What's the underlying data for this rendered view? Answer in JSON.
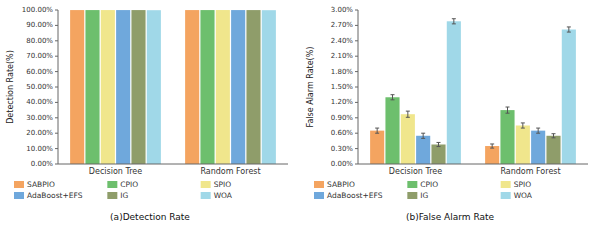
{
  "chart_data": [
    {
      "type": "bar",
      "title": "(a)Detection Rate",
      "y_label": "Detection Rate(%)",
      "categories": [
        "Decision Tree",
        "Random Forest"
      ],
      "series": [
        {
          "name": "SABPIO",
          "color": "#F4A460",
          "values": [
            99.95,
            99.95
          ]
        },
        {
          "name": "CPIO",
          "color": "#6DBF6D",
          "values": [
            99.95,
            99.95
          ]
        },
        {
          "name": "SPIO",
          "color": "#F0E68C",
          "values": [
            99.95,
            99.97
          ]
        },
        {
          "name": "AdaBoost+EFS",
          "color": "#6FA8DC",
          "values": [
            99.95,
            99.95
          ]
        },
        {
          "name": "IG",
          "color": "#8F9D6A",
          "values": [
            99.95,
            99.95
          ]
        },
        {
          "name": "WOA",
          "color": "#A0D8E8",
          "values": [
            99.87,
            99.87
          ]
        }
      ],
      "ylim": [
        0,
        100
      ],
      "yticks": [
        {
          "value": 0,
          "label": "0.00%"
        },
        {
          "value": 10,
          "label": "10.00%"
        },
        {
          "value": 20,
          "label": "20.00%"
        },
        {
          "value": 30,
          "label": "30.00%"
        },
        {
          "value": 40,
          "label": "40.00%"
        },
        {
          "value": 50,
          "label": "50.00%"
        },
        {
          "value": 60,
          "label": "60.00%"
        },
        {
          "value": 70,
          "label": "70.00%"
        },
        {
          "value": 80,
          "label": "80.00%"
        },
        {
          "value": 90,
          "label": "90.00%"
        },
        {
          "value": 100,
          "label": "100.00%"
        }
      ],
      "grid": false,
      "legend": "bottom"
    },
    {
      "type": "bar",
      "title": "(b)False Alarm Rate",
      "y_label": "False Alarm Rate(%)",
      "categories": [
        "Decision Tree",
        "Random Forest"
      ],
      "series": [
        {
          "name": "SABPIO",
          "color": "#F4A460",
          "values": [
            0.65,
            0.35
          ],
          "errors": [
            0.05,
            0.04
          ]
        },
        {
          "name": "CPIO",
          "color": "#6DBF6D",
          "values": [
            1.3,
            1.05
          ],
          "errors": [
            0.05,
            0.06
          ]
        },
        {
          "name": "SPIO",
          "color": "#F0E68C",
          "values": [
            0.97,
            0.75
          ],
          "errors": [
            0.06,
            0.05
          ]
        },
        {
          "name": "AdaBoost+EFS",
          "color": "#6FA8DC",
          "values": [
            0.55,
            0.65
          ],
          "errors": [
            0.05,
            0.05
          ]
        },
        {
          "name": "IG",
          "color": "#8F9D6A",
          "values": [
            0.38,
            0.55
          ],
          "errors": [
            0.04,
            0.04
          ]
        },
        {
          "name": "WOA",
          "color": "#A0D8E8",
          "values": [
            2.78,
            2.62
          ],
          "errors": [
            0.05,
            0.05
          ]
        }
      ],
      "ylim": [
        0,
        3.0
      ],
      "yticks": [
        {
          "value": 0.0,
          "label": "0.00%"
        },
        {
          "value": 0.3,
          "label": "0.30%"
        },
        {
          "value": 0.6,
          "label": "0.60%"
        },
        {
          "value": 0.9,
          "label": "0.90%"
        },
        {
          "value": 1.2,
          "label": "1.20%"
        },
        {
          "value": 1.5,
          "label": "1.50%"
        },
        {
          "value": 1.8,
          "label": "1.80%"
        },
        {
          "value": 2.1,
          "label": "2.10%"
        },
        {
          "value": 2.4,
          "label": "2.40%"
        },
        {
          "value": 2.7,
          "label": "2.70%"
        },
        {
          "value": 3.0,
          "label": "3.00%"
        }
      ],
      "grid": false,
      "legend": "bottom"
    }
  ]
}
